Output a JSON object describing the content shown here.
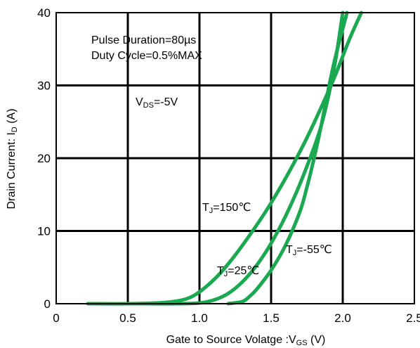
{
  "chart_data": {
    "type": "line",
    "xlabel_main": "Gate to Source Volatge :V",
    "xlabel_sub": "GS",
    "xlabel_unit": " (V)",
    "ylabel_main": "Drain Current: I",
    "ylabel_sub": "D",
    "ylabel_unit": " (A)",
    "xlim": [
      0,
      2.5
    ],
    "ylim": [
      0,
      40
    ],
    "x_ticks": [
      "0",
      "0.5",
      "1.0",
      "1.5",
      "2.0",
      "2.5"
    ],
    "y_ticks": [
      "0",
      "10",
      "20",
      "30",
      "40"
    ],
    "x_tick_values": [
      0,
      0.5,
      1.0,
      1.5,
      2.0,
      2.5
    ],
    "y_tick_values": [
      0,
      10,
      20,
      30,
      40
    ],
    "grid": true,
    "line_color": "#1aa851",
    "annotations": {
      "pulse": "Pulse Duration=80µs",
      "duty": "Duty Cycle=0.5%MAX",
      "vds_main": "V",
      "vds_sub": "DS",
      "vds_rest": "=-5V",
      "t150_main": "T",
      "t150_sub": "J",
      "t150_rest": "=150℃",
      "t25_main": "T",
      "t25_sub": "J",
      "t25_rest": "=25℃",
      "tm55_main": "T",
      "tm55_sub": "J",
      "tm55_rest": "=-55℃"
    },
    "series": [
      {
        "label": "TJ=150℃",
        "x": [
          0.22,
          0.5,
          0.7,
          0.85,
          0.95,
          1.05,
          1.15,
          1.25,
          1.35,
          1.45,
          1.55,
          1.65,
          1.75,
          1.85,
          1.95,
          2.05,
          2.13
        ],
        "y": [
          0,
          0,
          0.1,
          0.4,
          1.0,
          2.4,
          4.3,
          6.7,
          9.4,
          12.3,
          15.5,
          19.0,
          22.8,
          27.0,
          31.5,
          36.5,
          40
        ]
      },
      {
        "label": "TJ=25℃",
        "x": [
          0.55,
          0.85,
          1.0,
          1.1,
          1.2,
          1.3,
          1.4,
          1.5,
          1.6,
          1.7,
          1.8,
          1.85,
          1.9,
          1.95,
          2.0
        ],
        "y": [
          0,
          0,
          0.1,
          0.5,
          1.4,
          3.0,
          5.3,
          8.3,
          12.0,
          16.4,
          21.5,
          24.5,
          28.5,
          33.5,
          40
        ]
      },
      {
        "label": "TJ=-55℃",
        "x": [
          1.2,
          1.3,
          1.35,
          1.4,
          1.5,
          1.6,
          1.7,
          1.75,
          1.8,
          1.85,
          1.9,
          1.95,
          2.03
        ],
        "y": [
          0,
          0.3,
          1.0,
          2.0,
          4.6,
          8.0,
          12.6,
          16.0,
          20.0,
          24.5,
          29.5,
          34.0,
          40
        ]
      }
    ]
  }
}
